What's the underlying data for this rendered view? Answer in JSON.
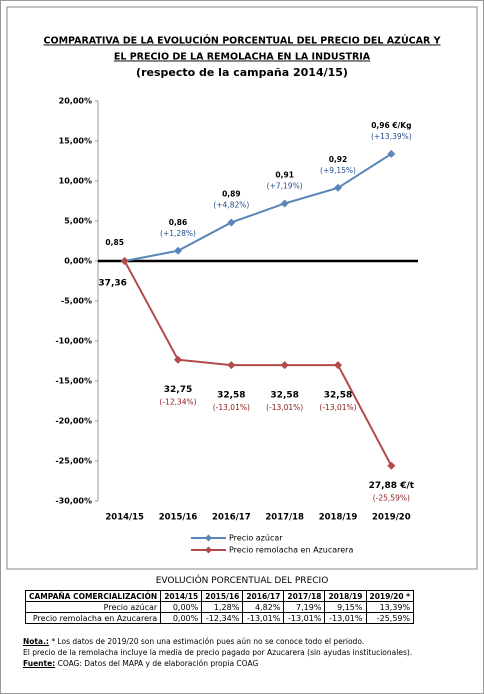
{
  "chart_data": {
    "type": "line",
    "title": [
      "COMPARATIVA DE LA EVOLUCIÓN PORCENTUAL DEL PRECIO DEL AZÚCAR Y",
      "EL PRECIO DE LA REMOLACHA EN LA INDUSTRIA",
      "(respecto de la campaña 2014/15)"
    ],
    "categories": [
      "2014/15",
      "2015/16",
      "2016/17",
      "2017/18",
      "2018/19",
      "2019/20"
    ],
    "series": [
      {
        "name": "Precio azúcar",
        "color": "#5a86b8",
        "values": [
          0,
          1.28,
          4.82,
          7.19,
          9.15,
          13.39
        ],
        "value_labels": [
          null,
          "(+1,28%)",
          "(+4,82%)",
          "(+7,19%)",
          "(+9,15%)",
          "(+13,39%)"
        ],
        "price_labels": [
          "0,85",
          "0,86",
          "0,89",
          "0,91",
          "0,92",
          "0,96 €/Kg"
        ]
      },
      {
        "name": "Precio remolacha en Azucarera",
        "color": "#b24a4a",
        "values": [
          0,
          -12.34,
          -13.01,
          -13.01,
          -13.01,
          -25.59
        ],
        "value_labels": [
          null,
          "(-12,34%)",
          "(-13,01%)",
          "(-13,01%)",
          "(-13,01%)",
          "(-25,59%)"
        ],
        "price_labels": [
          "37,36",
          "32,75",
          "32,58",
          "32,58",
          "32,58",
          "27,88 €/t"
        ]
      }
    ],
    "ylim": [
      -30,
      20
    ],
    "yticks": [
      {
        "value": 20,
        "label": "20,00%"
      },
      {
        "value": 15,
        "label": "15,00%"
      },
      {
        "value": 10,
        "label": "10,00%"
      },
      {
        "value": 5,
        "label": "5,00%"
      },
      {
        "value": 0,
        "label": "0,00%"
      },
      {
        "value": -5,
        "label": "-5,00%"
      },
      {
        "value": -10,
        "label": "-10,00%"
      },
      {
        "value": -15,
        "label": "-15,00%"
      },
      {
        "value": -20,
        "label": "-20,00%"
      },
      {
        "value": -25,
        "label": "-25,00%"
      },
      {
        "value": -30,
        "label": "-30,00%"
      }
    ],
    "grid": false,
    "legend": "bottom"
  },
  "table": {
    "title": "EVOLUCIÓN PORCENTUAL DEL PRECIO",
    "header": [
      "CAMPAÑA COMERCIALIZACIÓN",
      "2014/15",
      "2015/16",
      "2016/17",
      "2017/18",
      "2018/19",
      "2019/20 *"
    ],
    "rows": [
      [
        "Precio azúcar",
        "0,00%",
        "1,28%",
        "4,82%",
        "7,19%",
        "9,15%",
        "13,39%"
      ],
      [
        "Precio remolacha en Azucarera",
        "0,00%",
        "-12,34%",
        "-13,01%",
        "-13,01%",
        "-13,01%",
        "-25,59%"
      ]
    ]
  },
  "notes": [
    {
      "label": "Nota.:",
      "text": "* Los datos de 2019/20 son una estimación pues aún no se conoce todo el periodo."
    },
    {
      "text": "El precio de la remolacha incluye la media de precio pagado por Azucarera (sin ayudas institucionales)."
    },
    {
      "label": "Fuente:",
      "text": "COAG: Datos del MAPA y de elaboración propia COAG"
    }
  ]
}
